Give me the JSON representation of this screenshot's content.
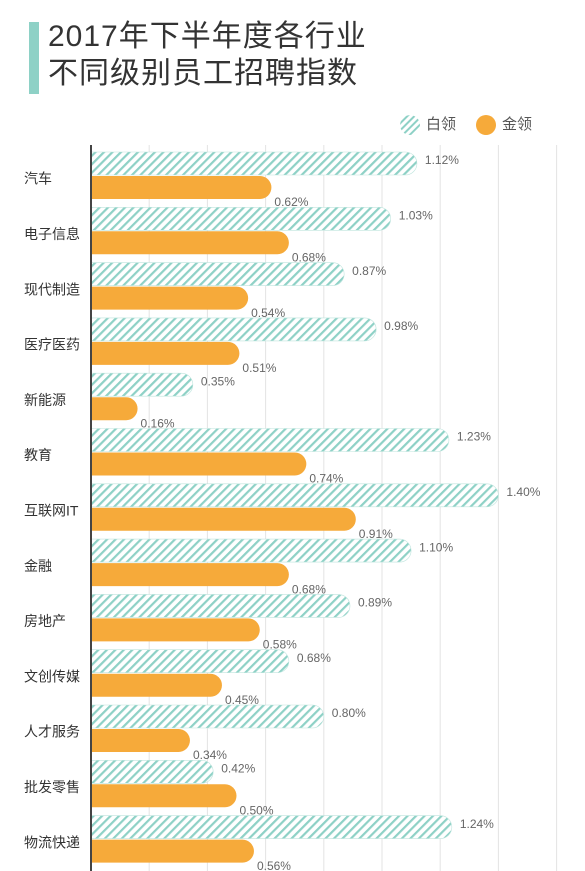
{
  "title": {
    "line1": "2017年下半年度各行业",
    "line2": "不同级别员工招聘指数"
  },
  "legend": [
    {
      "name": "白领",
      "style": "hatched",
      "color": "#8ed1c6"
    },
    {
      "name": "金领",
      "style": "solid",
      "color": "#f6aa3a"
    }
  ],
  "chart_data": {
    "type": "bar",
    "orientation": "horizontal",
    "categories": [
      "汽车",
      "电子信息",
      "现代制造",
      "医疗医药",
      "新能源",
      "教育",
      "互联网IT",
      "金融",
      "房地产",
      "文创传媒",
      "人才服务",
      "批发零售",
      "物流快递"
    ],
    "series": [
      {
        "name": "白领",
        "values": [
          1.12,
          1.03,
          0.87,
          0.98,
          0.35,
          1.23,
          1.4,
          1.1,
          0.89,
          0.68,
          0.8,
          0.42,
          1.24
        ],
        "labels": [
          "1.12%",
          "1.03%",
          "0.87%",
          "0.98%",
          "0.35%",
          "1.23%",
          "1.40%",
          "1.10%",
          "0.89%",
          "0.68%",
          "0.80%",
          "0.42%",
          "1.24%"
        ],
        "color": "#8ed1c6",
        "fill": "hatched"
      },
      {
        "name": "金领",
        "values": [
          0.62,
          0.68,
          0.54,
          0.51,
          0.16,
          0.74,
          0.91,
          0.68,
          0.58,
          0.45,
          0.34,
          0.5,
          0.56
        ],
        "labels": [
          "0.62%",
          "0.68%",
          "0.54%",
          "0.51%",
          "0.16%",
          "0.74%",
          "0.91%",
          "0.68%",
          "0.58%",
          "0.45%",
          "0.34%",
          "0.50%",
          "0.56%"
        ],
        "color": "#f6aa3a",
        "fill": "solid"
      }
    ],
    "xlim": [
      0,
      1.6
    ],
    "grid": true,
    "legend_position": "top-right"
  }
}
